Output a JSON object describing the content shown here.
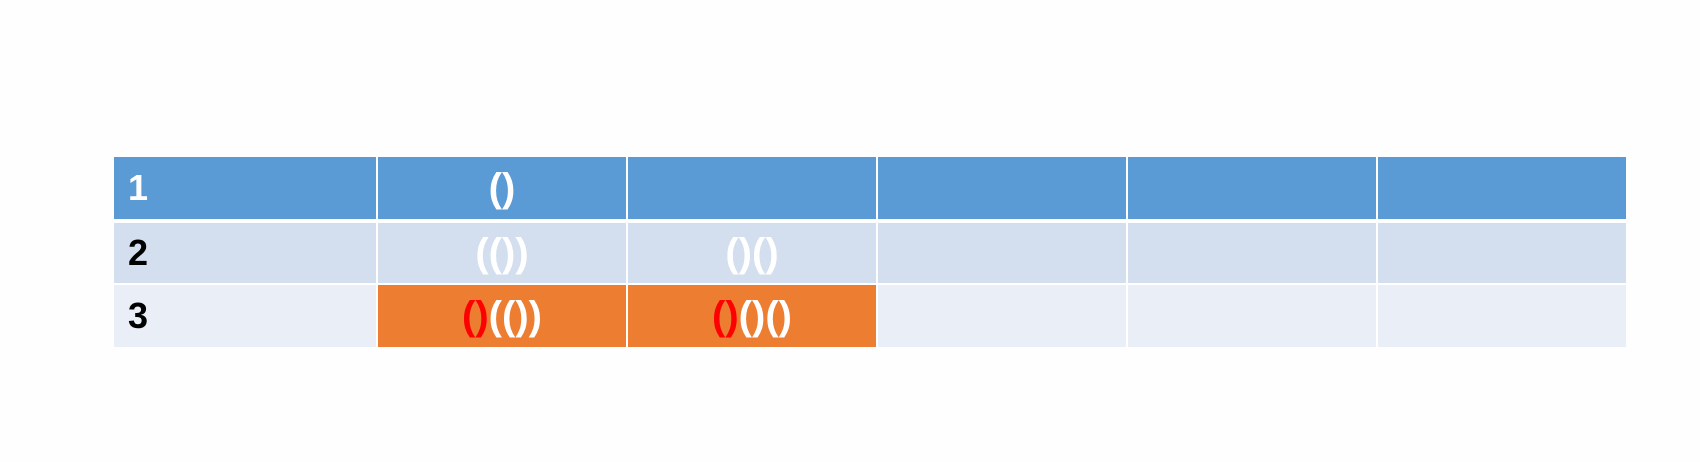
{
  "colors": {
    "header_row": "#5b9bd5",
    "light_row": "#d3dfee",
    "lighter_row": "#e9eef7",
    "highlight": "#ed7d31",
    "header_text": "#ffffff",
    "body_text": "#000000",
    "paren_light": "#ffffff",
    "paren_red": "#ff0000"
  },
  "rows": [
    {
      "label": "1",
      "cells": [
        {
          "segments": [
            {
              "text": "()",
              "color": "white"
            }
          ]
        },
        {
          "segments": []
        },
        {
          "segments": []
        },
        {
          "segments": []
        },
        {
          "segments": []
        }
      ]
    },
    {
      "label": "2",
      "cells": [
        {
          "segments": [
            {
              "text": "(())",
              "color": "white"
            }
          ]
        },
        {
          "segments": [
            {
              "text": "()()",
              "color": "white"
            }
          ]
        },
        {
          "segments": []
        },
        {
          "segments": []
        },
        {
          "segments": []
        }
      ]
    },
    {
      "label": "3",
      "cells": [
        {
          "highlight": true,
          "segments": [
            {
              "text": "()",
              "color": "red"
            },
            {
              "text": "(())",
              "color": "white"
            }
          ]
        },
        {
          "highlight": true,
          "segments": [
            {
              "text": "()",
              "color": "red"
            },
            {
              "text": "()()",
              "color": "white"
            }
          ]
        },
        {
          "segments": []
        },
        {
          "segments": []
        },
        {
          "segments": []
        }
      ]
    }
  ]
}
